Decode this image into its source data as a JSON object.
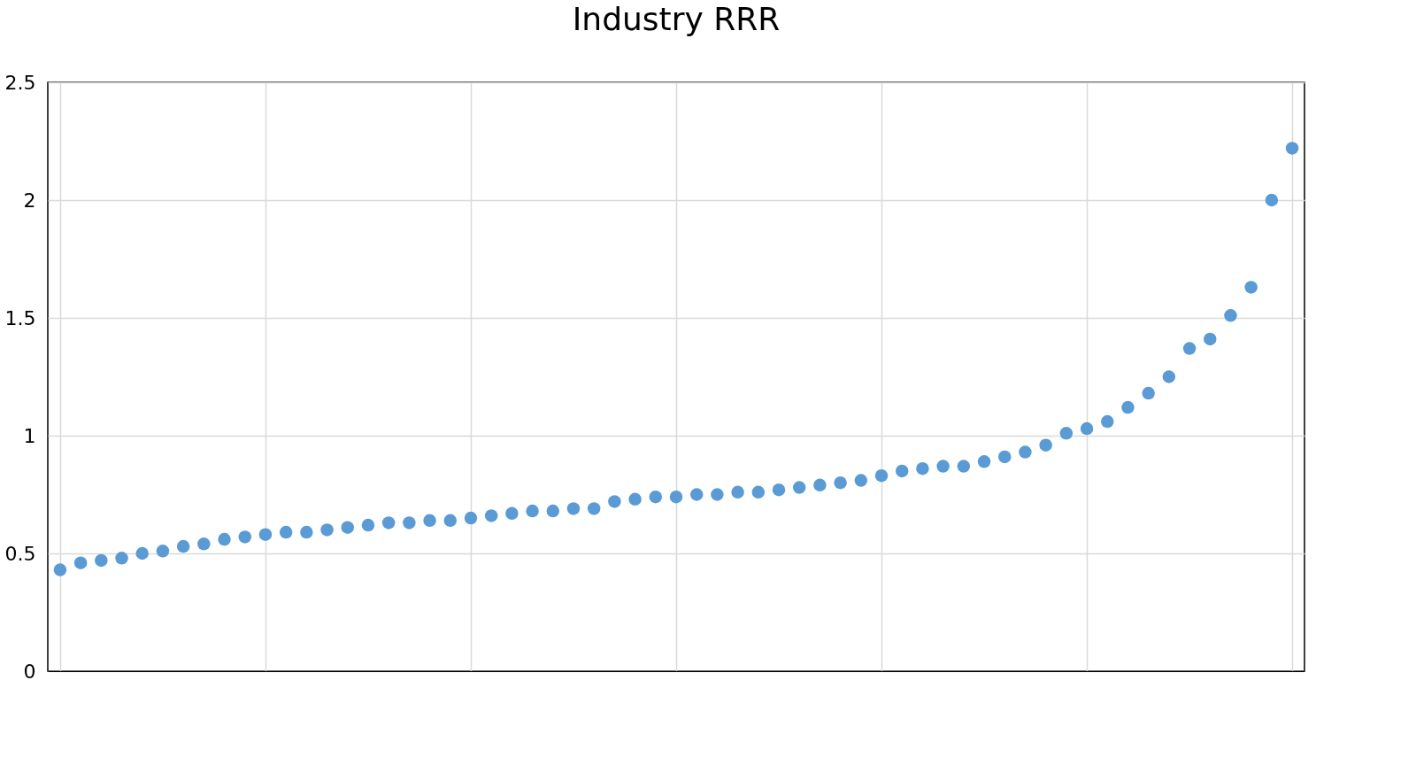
{
  "chart_data": {
    "type": "scatter",
    "title": "Industry RRR",
    "categories": [
      null,
      null,
      null,
      null,
      null,
      null,
      null,
      null,
      null,
      null,
      null,
      null,
      null,
      null,
      null,
      null,
      null,
      null,
      null,
      null,
      null,
      null,
      null,
      null,
      null,
      null,
      null,
      null,
      null,
      null,
      null,
      null,
      null,
      null,
      null,
      null,
      null,
      null,
      null,
      null,
      null,
      null,
      null,
      null,
      null,
      null,
      null,
      null,
      null,
      null,
      null,
      null,
      null,
      null,
      null,
      null,
      null,
      null,
      null,
      null,
      null
    ],
    "series": [
      {
        "color": "#5b9bd5",
        "values": [
          0.43,
          0.46,
          0.47,
          0.48,
          0.5,
          0.51,
          0.53,
          0.54,
          0.56,
          0.57,
          0.58,
          0.59,
          0.59,
          0.6,
          0.61,
          0.62,
          0.63,
          0.63,
          0.64,
          0.64,
          0.65,
          0.66,
          0.67,
          0.68,
          0.68,
          0.69,
          0.69,
          0.72,
          0.73,
          0.74,
          0.74,
          0.75,
          0.75,
          0.76,
          0.76,
          0.77,
          0.78,
          0.79,
          0.8,
          0.81,
          0.83,
          0.85,
          0.86,
          0.87,
          0.87,
          0.89,
          0.91,
          0.93,
          0.96,
          1.01,
          1.03,
          1.06,
          1.12,
          1.18,
          1.25,
          1.37,
          1.41,
          1.51,
          1.63,
          2.0,
          2.22
        ]
      }
    ],
    "ylim": [
      0,
      2.5
    ],
    "yticks": [
      0,
      0.5,
      1,
      1.5,
      2,
      2.5
    ],
    "grid": true,
    "marker": "circle"
  }
}
